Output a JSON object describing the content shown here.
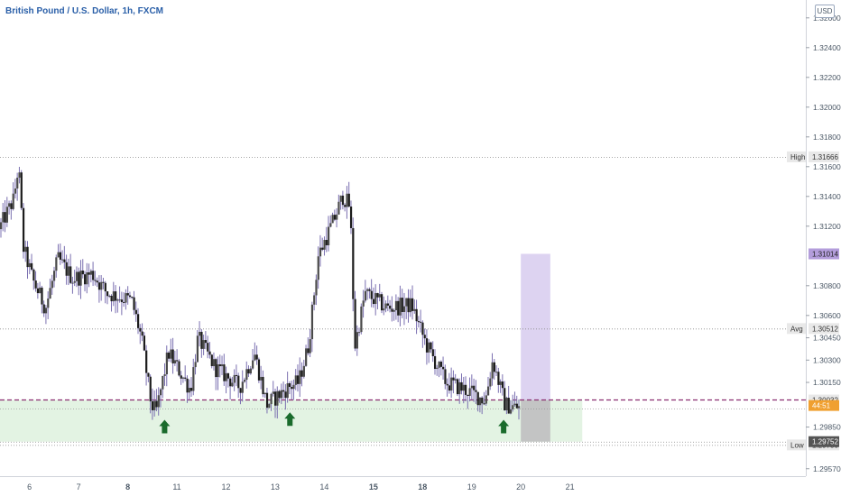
{
  "header": {
    "title": "British Pound / U.S. Dollar, 1h, FXCM",
    "currency": "USD"
  },
  "colors": {
    "up": "#4a4a4a",
    "down": "#1c1c1c",
    "wick": "#7a6fb0",
    "level_line": "#8a8a8a",
    "support_zone": "#e3f3e3",
    "projection_zone": "#ddd3f1",
    "stop_zone": "#c3c4c4",
    "dashed_line": "#8a2d6f",
    "arrow": "#1a6b2c",
    "high_low_tag": "#e8e8e8",
    "purple_tag": "#b39ddb",
    "orange_tag": "#f0a030",
    "dark_tag": "#555555"
  },
  "chart_data": {
    "type": "candlestick",
    "title": "British Pound / U.S. Dollar, 1h, FXCM",
    "ylim": [
      1.2952,
      1.3272
    ],
    "x_range_days": [
      5.4,
      21.8
    ],
    "x_ticks": [
      {
        "label": "6",
        "day": 6
      },
      {
        "label": "7",
        "day": 7
      },
      {
        "label": "8",
        "day": 8
      },
      {
        "label": "11",
        "day": 9
      },
      {
        "label": "12",
        "day": 10
      },
      {
        "label": "13",
        "day": 11
      },
      {
        "label": "14",
        "day": 12
      },
      {
        "label": "15",
        "day": 13
      },
      {
        "label": "18",
        "day": 14
      },
      {
        "label": "19",
        "day": 15
      },
      {
        "label": "20",
        "day": 16
      },
      {
        "label": "21",
        "day": 17
      }
    ],
    "y_ticks": [
      "1.32600",
      "1.32400",
      "1.32200",
      "1.32000",
      "1.31800",
      "1.31600",
      "1.31400",
      "1.31200",
      "1.30800",
      "1.30600",
      "1.30450",
      "1.30300",
      "1.30150",
      "1.29850",
      "1.29570"
    ],
    "series": [
      {
        "waypoints": [
          {
            "day": 5.4,
            "price": 1.3118
          },
          {
            "day": 5.7,
            "price": 1.3138
          },
          {
            "day": 5.8,
            "price": 1.3161
          },
          {
            "day": 5.9,
            "price": 1.3105
          },
          {
            "day": 6.1,
            "price": 1.3083
          },
          {
            "day": 6.35,
            "price": 1.3065
          },
          {
            "day": 6.6,
            "price": 1.3098
          },
          {
            "day": 6.9,
            "price": 1.3085
          },
          {
            "day": 7.3,
            "price": 1.3088
          },
          {
            "day": 7.6,
            "price": 1.3075
          },
          {
            "day": 8.1,
            "price": 1.307
          },
          {
            "day": 8.3,
            "price": 1.3045
          },
          {
            "day": 8.5,
            "price": 1.3
          },
          {
            "day": 8.6,
            "price": 1.2995
          },
          {
            "day": 8.85,
            "price": 1.3035
          },
          {
            "day": 9.3,
            "price": 1.301
          },
          {
            "day": 9.45,
            "price": 1.3045
          },
          {
            "day": 9.8,
            "price": 1.3025
          },
          {
            "day": 10.3,
            "price": 1.3012
          },
          {
            "day": 10.6,
            "price": 1.3035
          },
          {
            "day": 10.85,
            "price": 1.3
          },
          {
            "day": 11.3,
            "price": 1.3012
          },
          {
            "day": 11.5,
            "price": 1.3015
          },
          {
            "day": 11.7,
            "price": 1.304
          },
          {
            "day": 11.9,
            "price": 1.31
          },
          {
            "day": 12.2,
            "price": 1.3123
          },
          {
            "day": 12.4,
            "price": 1.314
          },
          {
            "day": 12.55,
            "price": 1.3133
          },
          {
            "day": 12.6,
            "price": 1.308
          },
          {
            "day": 12.65,
            "price": 1.304
          },
          {
            "day": 12.85,
            "price": 1.3075
          },
          {
            "day": 13.3,
            "price": 1.3065
          },
          {
            "day": 13.8,
            "price": 1.3067
          },
          {
            "day": 14.1,
            "price": 1.304
          },
          {
            "day": 14.5,
            "price": 1.3015
          },
          {
            "day": 14.9,
            "price": 1.301
          },
          {
            "day": 15.3,
            "price": 1.3003
          },
          {
            "day": 15.45,
            "price": 1.303
          },
          {
            "day": 15.7,
            "price": 1.3
          },
          {
            "day": 15.95,
            "price": 1.2998
          }
        ]
      }
    ],
    "levels": [
      {
        "label": "High",
        "value": "1.31666",
        "price": 1.31666
      },
      {
        "label": "Avg",
        "value": "1.30512",
        "price": 1.30512
      },
      {
        "label": "Low",
        "value": "1.29730",
        "price": 1.2973
      }
    ],
    "price_tags": [
      {
        "value": "1.31014",
        "price": 1.31014,
        "kind": "purple"
      },
      {
        "value": "1.30032",
        "price": 1.30032,
        "kind": "plain"
      },
      {
        "value": "44:51",
        "price": 1.29995,
        "kind": "orange"
      },
      {
        "value": "1.29752",
        "price": 1.29752,
        "kind": "dark"
      }
    ],
    "support_zone": {
      "from_day": 5.4,
      "to_day": 17.25,
      "low": 1.29752,
      "high": 1.30032
    },
    "projection_zone": {
      "from_day": 16.0,
      "to_day": 16.6,
      "low": 1.30032,
      "high": 1.31014
    },
    "stop_zone": {
      "from_day": 16.0,
      "to_day": 16.6,
      "low": 1.29752,
      "high": 1.30032
    },
    "dashed_line_price": 1.30032,
    "mid_line_price": 1.29975,
    "arrows": [
      {
        "day": 8.75,
        "price": 1.2985
      },
      {
        "day": 11.3,
        "price": 1.299
      },
      {
        "day": 15.65,
        "price": 1.2985
      }
    ]
  }
}
